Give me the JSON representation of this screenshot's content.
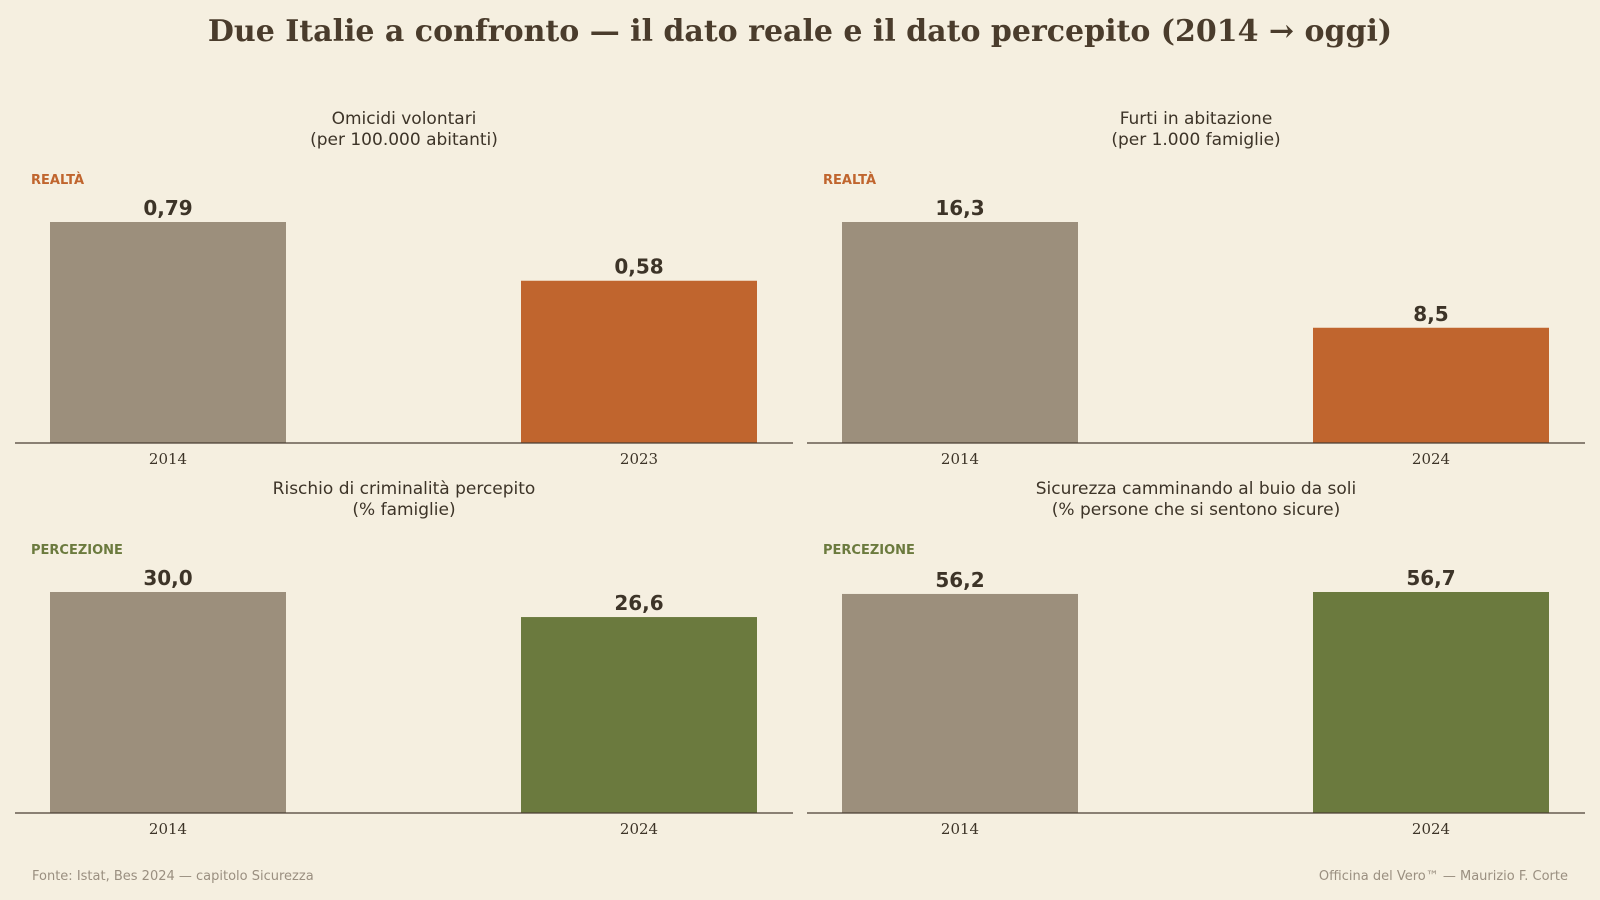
{
  "title": "Due Italie a confronto — il dato reale e il dato percepito (2014 → oggi)",
  "footer": {
    "source": "Fonte: Istat, Bes 2024 — capitolo Sicurezza",
    "credit": "Officina del Vero™ — Maurizio F. Corte"
  },
  "colors": {
    "baseline_bar": "#9c8f7c",
    "reality": "#c0652e",
    "perception": "#6b7a3e",
    "background": "#f5efe0",
    "text": "#3d3428"
  },
  "chart_data": [
    {
      "type": "bar",
      "title_lines": [
        "Omicidi volontari",
        "(per 100.000 abitanti)"
      ],
      "tag": "REALTÀ",
      "tag_kind": "reality",
      "categories": [
        "2014",
        "2023"
      ],
      "values": [
        0.79,
        0.58
      ],
      "value_labels": [
        "0,79",
        "0,58"
      ],
      "xlabel": "",
      "ylabel": "",
      "ylim": [
        0,
        0.79
      ],
      "grid": false
    },
    {
      "type": "bar",
      "title_lines": [
        "Furti in abitazione",
        "(per 1.000 famiglie)"
      ],
      "tag": "REALTÀ",
      "tag_kind": "reality",
      "categories": [
        "2014",
        "2024"
      ],
      "values": [
        16.3,
        8.5
      ],
      "value_labels": [
        "16,3",
        "8,5"
      ],
      "xlabel": "",
      "ylabel": "",
      "ylim": [
        0,
        16.3
      ],
      "grid": false
    },
    {
      "type": "bar",
      "title_lines": [
        "Rischio di criminalità percepito",
        "(% famiglie)"
      ],
      "tag": "PERCEZIONE",
      "tag_kind": "perception",
      "categories": [
        "2014",
        "2024"
      ],
      "values": [
        30.0,
        26.6
      ],
      "value_labels": [
        "30,0",
        "26,6"
      ],
      "xlabel": "",
      "ylabel": "",
      "ylim": [
        0,
        30.0
      ],
      "grid": false
    },
    {
      "type": "bar",
      "title_lines": [
        "Sicurezza camminando al buio da soli",
        "(% persone che si sentono sicure)"
      ],
      "tag": "PERCEZIONE",
      "tag_kind": "perception",
      "categories": [
        "2014",
        "2024"
      ],
      "values": [
        56.2,
        56.7
      ],
      "value_labels": [
        "56,2",
        "56,7"
      ],
      "xlabel": "",
      "ylabel": "",
      "ylim": [
        0,
        56.7
      ],
      "grid": false
    }
  ]
}
